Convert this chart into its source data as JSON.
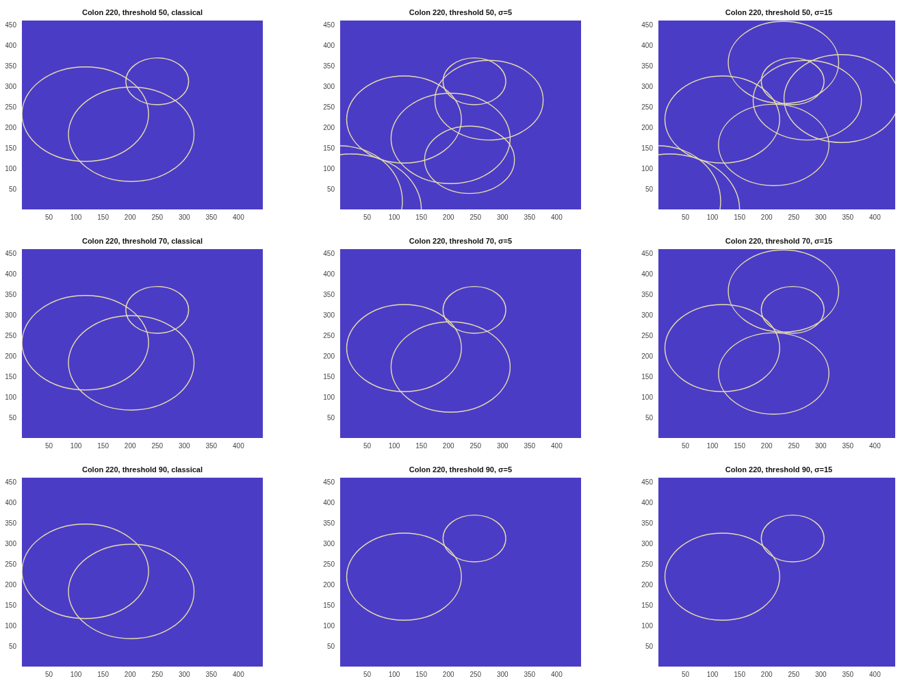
{
  "chart_data": [
    {
      "type": "line",
      "title": "Colon 220, threshold 50, classical",
      "xlim": [
        0,
        445
      ],
      "ylim": [
        0,
        460
      ],
      "xticks": [
        50,
        100,
        150,
        200,
        250,
        300,
        350,
        400
      ],
      "yticks": [
        50,
        100,
        150,
        200,
        250,
        300,
        350,
        400,
        450
      ],
      "bands": [
        {
          "axis": "x",
          "from": 0,
          "to": 445,
          "color": "#4b3cc6"
        }
      ]
    },
    {
      "type": "line",
      "title": "Colon 220, threshold 50, σ=5",
      "xlim": [
        0,
        445
      ],
      "ylim": [
        0,
        460
      ],
      "xticks": [
        50,
        100,
        150,
        200,
        250,
        300,
        350,
        400
      ],
      "yticks": [
        50,
        100,
        150,
        200,
        250,
        300,
        350,
        400,
        450
      ],
      "bands": [
        {
          "axis": "x",
          "from": 0,
          "to": 445,
          "color": "#4b3cc6"
        }
      ]
    },
    {
      "type": "line",
      "title": "Colon 220, threshold 50, σ=15",
      "xlim": [
        0,
        445
      ],
      "ylim": [
        0,
        460
      ],
      "xticks": [
        50,
        100,
        150,
        200,
        250,
        300,
        350,
        400
      ],
      "yticks": [
        50,
        100,
        150,
        200,
        250,
        300,
        350,
        400,
        450
      ],
      "bands": [
        {
          "axis": "x",
          "from": 0,
          "to": 445,
          "color": "#4b3cc6"
        }
      ]
    },
    {
      "type": "line",
      "title": "Colon 220, threshold 70, classical",
      "xlim": [
        0,
        445
      ],
      "ylim": [
        0,
        460
      ],
      "xticks": [
        50,
        100,
        150,
        200,
        250,
        300,
        350,
        400
      ],
      "yticks": [
        50,
        100,
        150,
        200,
        250,
        300,
        350,
        400,
        450
      ],
      "bands": [
        {
          "axis": "x",
          "from": 0,
          "to": 445,
          "color": "#4b3cc6"
        }
      ]
    },
    {
      "type": "line",
      "title": "Colon 220, threshold 70, σ=5",
      "xlim": [
        0,
        445
      ],
      "ylim": [
        0,
        460
      ],
      "xticks": [
        50,
        100,
        150,
        200,
        250,
        300,
        350,
        400
      ],
      "yticks": [
        50,
        100,
        150,
        200,
        250,
        300,
        350,
        400,
        450
      ],
      "bands": [
        {
          "axis": "x",
          "from": 0,
          "to": 445,
          "color": "#4b3cc6"
        }
      ]
    },
    {
      "type": "line",
      "title": "Colon 220, threshold 70, σ=15",
      "xlim": [
        0,
        445
      ],
      "ylim": [
        0,
        460
      ],
      "xticks": [
        50,
        100,
        150,
        200,
        250,
        300,
        350,
        400
      ],
      "yticks": [
        50,
        100,
        150,
        200,
        250,
        300,
        350,
        400,
        450
      ],
      "bands": [
        {
          "axis": "x",
          "from": 0,
          "to": 445,
          "color": "#4b3cc6"
        }
      ]
    },
    {
      "type": "line",
      "title": "Colon 220, threshold 90, classical",
      "xlim": [
        0,
        445
      ],
      "ylim": [
        0,
        460
      ],
      "xticks": [
        50,
        100,
        150,
        200,
        250,
        300,
        350,
        400
      ],
      "yticks": [
        50,
        100,
        150,
        200,
        250,
        300,
        350,
        400,
        450
      ],
      "bands": [
        {
          "axis": "x",
          "from": 0,
          "to": 445,
          "color": "#4b3cc6"
        }
      ]
    },
    {
      "type": "line",
      "title": "Colon 220, threshold 90, σ=5",
      "xlim": [
        0,
        445
      ],
      "ylim": [
        0,
        460
      ],
      "xticks": [
        50,
        100,
        150,
        200,
        250,
        300,
        350,
        400
      ],
      "yticks": [
        50,
        100,
        150,
        200,
        250,
        300,
        350,
        400,
        450
      ],
      "bands": [
        {
          "axis": "x",
          "from": 0,
          "to": 445,
          "color": "#4b3cc6"
        }
      ]
    },
    {
      "type": "line",
      "title": "Colon 220, threshold 90, σ=15",
      "xlim": [
        0,
        445
      ],
      "ylim": [
        0,
        460
      ],
      "xticks": [
        50,
        100,
        150,
        200,
        250,
        300,
        350,
        400
      ],
      "yticks": [
        50,
        100,
        150,
        200,
        250,
        300,
        350,
        400,
        450
      ],
      "bands": [
        {
          "axis": "x",
          "from": 0,
          "to": 445,
          "color": "#4b3cc6"
        }
      ]
    }
  ]
}
